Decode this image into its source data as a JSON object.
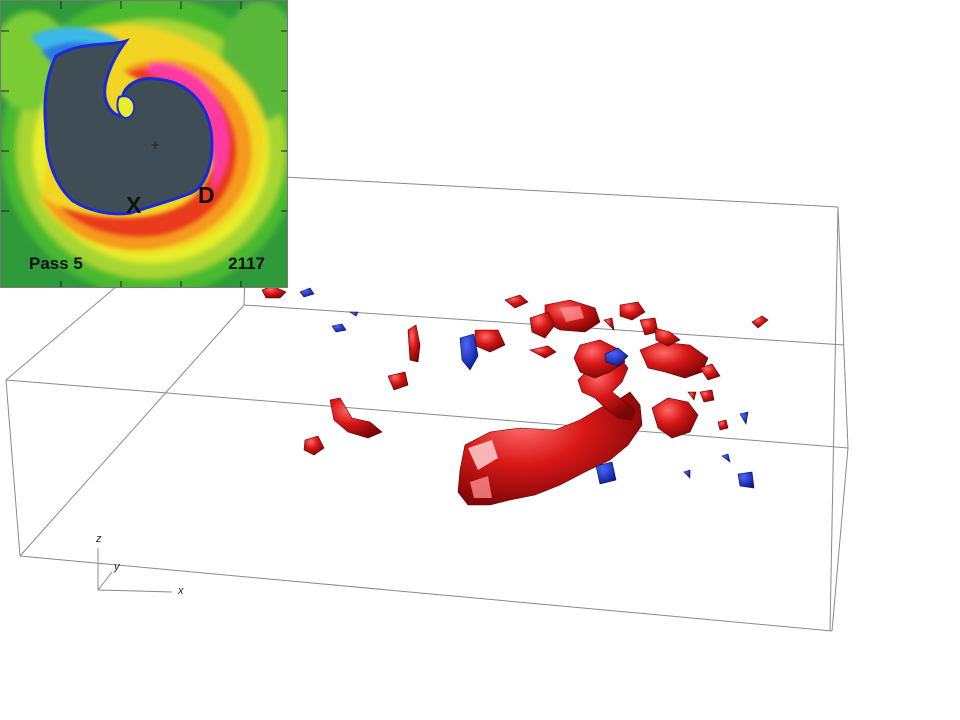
{
  "inset": {
    "pass_label": "Pass 5",
    "frame_label": "2117",
    "marker_x": "X",
    "marker_d": "D"
  },
  "axes": {
    "x": "x",
    "y": "y",
    "z": "z"
  },
  "colors": {
    "positive_isosurface": "#cc1010",
    "negative_isosurface": "#1530c8",
    "core": "#3f4e56",
    "box_edges": "#8a8a8a"
  }
}
